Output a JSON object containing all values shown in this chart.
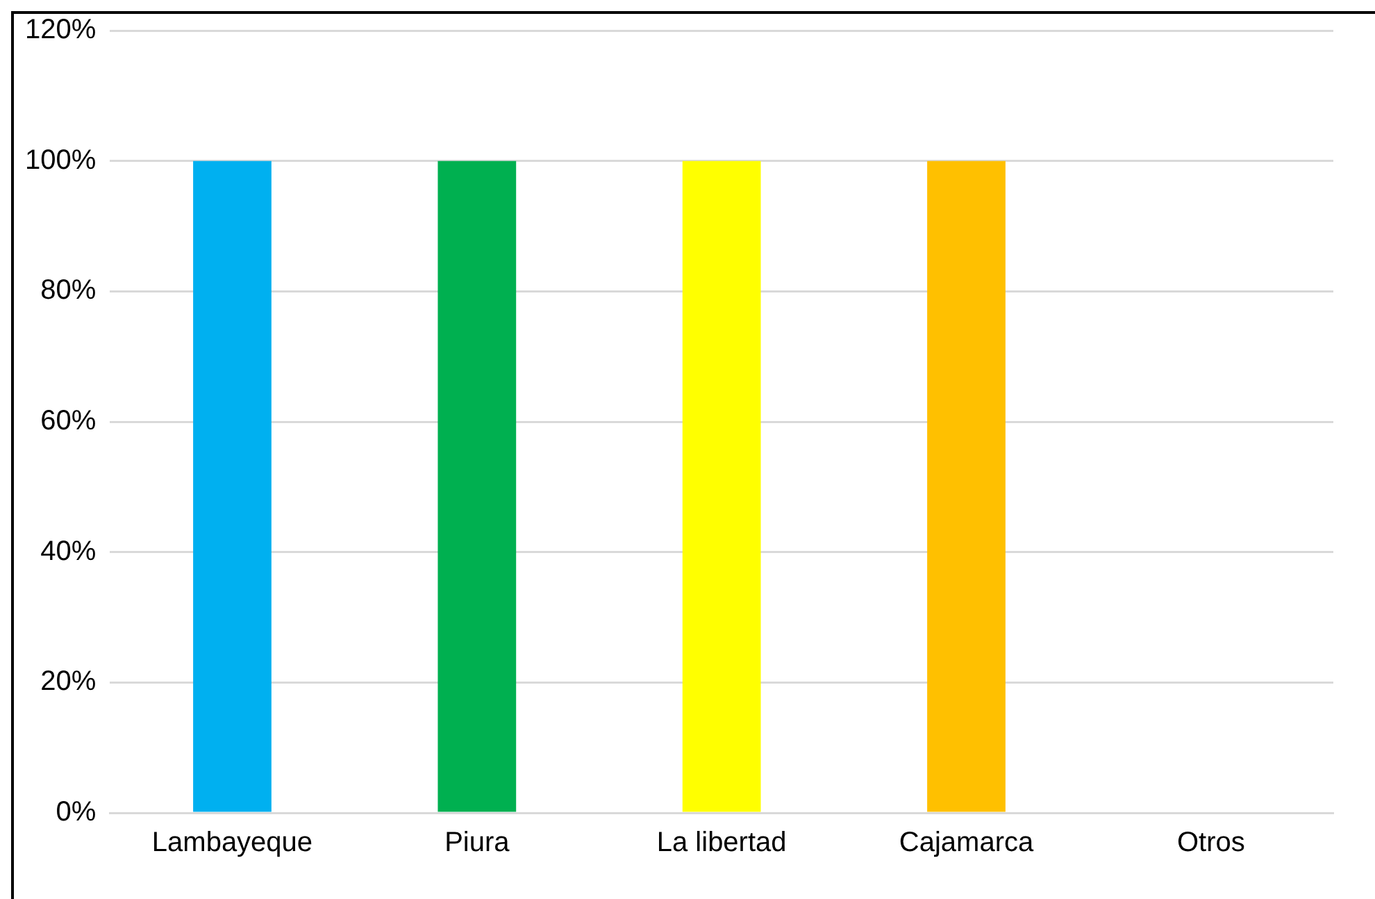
{
  "chart_data": {
    "type": "bar",
    "categories": [
      "Lambayeque",
      "Piura",
      "La libertad",
      "Cajamarca",
      "Otros"
    ],
    "values": [
      100,
      100,
      100,
      100,
      0
    ],
    "colors": [
      "#00b0f0",
      "#00b050",
      "#ffff00",
      "#ffc000",
      "#7f7f7f"
    ],
    "ylim": [
      0,
      120
    ],
    "yticks": [
      {
        "value": 0,
        "label": "0%"
      },
      {
        "value": 20,
        "label": "20%"
      },
      {
        "value": 40,
        "label": "40%"
      },
      {
        "value": 60,
        "label": "60%"
      },
      {
        "value": 80,
        "label": "80%"
      },
      {
        "value": 100,
        "label": "100%"
      },
      {
        "value": 120,
        "label": "120%"
      }
    ],
    "grid": "y",
    "legend": false
  }
}
